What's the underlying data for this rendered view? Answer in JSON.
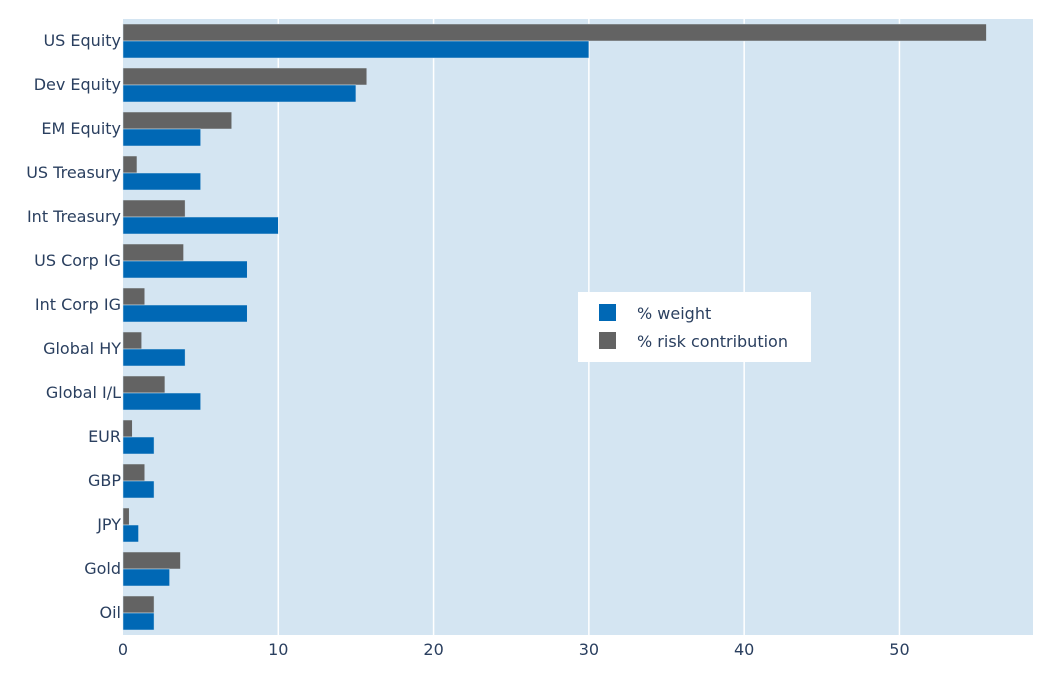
{
  "chart_data": {
    "type": "bar",
    "orientation": "horizontal",
    "categories": [
      "US Equity",
      "Dev Equity",
      "EM Equity",
      "US Treasury",
      "Int Treasury",
      "US Corp IG",
      "Int Corp IG",
      "Global HY",
      "Global I/L",
      "EUR",
      "GBP",
      "JPY",
      "Gold",
      "Oil"
    ],
    "series": [
      {
        "name": "% weight",
        "color": "#0068b5",
        "values": [
          30,
          15,
          5,
          5,
          10,
          8,
          8,
          4,
          5,
          2,
          2,
          1,
          3,
          2
        ]
      },
      {
        "name": "% risk contribution",
        "color": "#636363",
        "values": [
          55.6,
          15.7,
          7.0,
          0.9,
          4.0,
          3.9,
          1.4,
          1.2,
          2.7,
          0.6,
          1.4,
          0.4,
          3.7,
          2.0
        ]
      }
    ],
    "xlim": [
      0,
      58.6
    ],
    "xticks": [
      0,
      10,
      20,
      30,
      40,
      50
    ],
    "grid": true,
    "legend_position": "center-right",
    "background_color": "#d4e5f2"
  }
}
